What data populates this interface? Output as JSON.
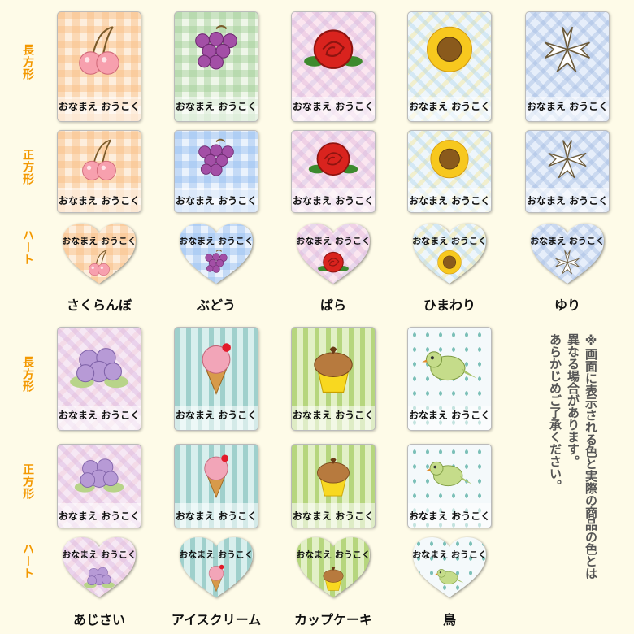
{
  "row_labels": [
    "長方形",
    "正方形",
    "ハート"
  ],
  "sticker_text": "おなまえ おうこく",
  "sections": [
    {
      "designs": [
        "さくらんぼ",
        "ぶどう",
        "ばら",
        "ひまわり",
        "ゆり"
      ]
    },
    {
      "designs": [
        "あじさい",
        "アイスクリーム",
        "カップケーキ",
        "鳥"
      ]
    }
  ],
  "note": [
    "※画面に表示される色と実際の商品の色とは",
    "異なる場合があります。",
    "あらかじめご了承ください。"
  ]
}
